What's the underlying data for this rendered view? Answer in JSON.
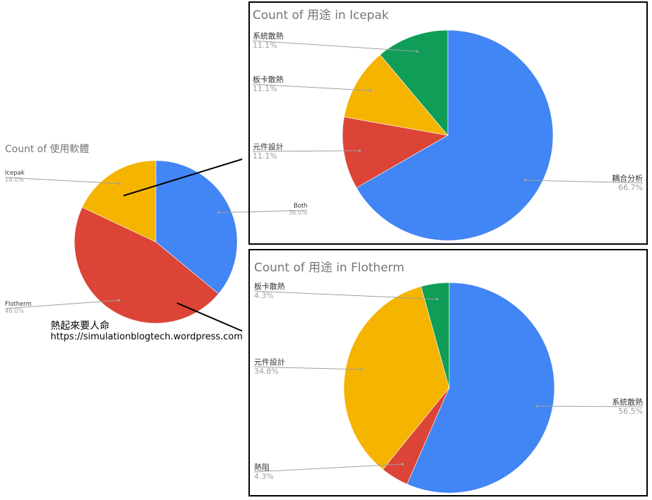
{
  "colors": {
    "blue": "#4285f4",
    "red": "#db4437",
    "yellow": "#f4b400",
    "green": "#0f9d58"
  },
  "caption": {
    "name": "熱起來要人命",
    "url": "https://simulationblogtech.wordpress.com"
  },
  "chart_data": [
    {
      "type": "pie",
      "title": "Count of 使用軟體",
      "slices": [
        {
          "label": "Both",
          "value": 36.0,
          "pct": "36.0%",
          "color": "#4285f4"
        },
        {
          "label": "Flotherm",
          "value": 46.0,
          "pct": "46.0%",
          "color": "#db4437"
        },
        {
          "label": "Icepak",
          "value": 18.0,
          "pct": "18.0%",
          "color": "#f4b400"
        }
      ]
    },
    {
      "type": "pie",
      "title": "Count of 用途 in Icepak",
      "slices": [
        {
          "label": "耦合分析",
          "value": 66.7,
          "pct": "66.7%",
          "color": "#4285f4"
        },
        {
          "label": "元件設計",
          "value": 11.1,
          "pct": "11.1%",
          "color": "#db4437"
        },
        {
          "label": "板卡散熱",
          "value": 11.1,
          "pct": "11.1%",
          "color": "#f4b400"
        },
        {
          "label": "系統散熱",
          "value": 11.1,
          "pct": "11.1%",
          "color": "#0f9d58"
        }
      ]
    },
    {
      "type": "pie",
      "title": "Count of 用途 in Flotherm",
      "slices": [
        {
          "label": "系統散熱",
          "value": 56.5,
          "pct": "56.5%",
          "color": "#4285f4"
        },
        {
          "label": "熱阻",
          "value": 4.3,
          "pct": "4.3%",
          "color": "#db4437"
        },
        {
          "label": "元件設計",
          "value": 34.8,
          "pct": "34.8%",
          "color": "#f4b400"
        },
        {
          "label": "板卡散熱",
          "value": 4.3,
          "pct": "4.3%",
          "color": "#0f9d58"
        }
      ]
    }
  ]
}
